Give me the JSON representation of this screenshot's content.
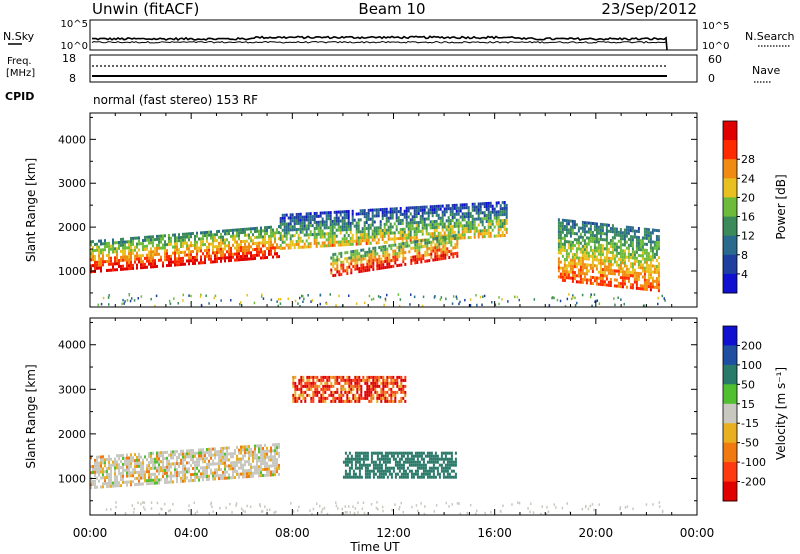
{
  "header": {
    "station": "Unwin (fitACF)",
    "beam": "Beam 10",
    "date": "23/Sep/2012"
  },
  "noise_panel": {
    "left_label": "N.Sky",
    "right_label": "N.Search",
    "left_ticks": [
      "10^5",
      "10^0"
    ],
    "right_ticks": [
      "10^5",
      "10^0"
    ]
  },
  "freq_panel": {
    "left_label_1": "Freq.",
    "left_label_2": "[MHz]",
    "right_label": "Nave",
    "left_ticks": [
      "18",
      "8"
    ],
    "right_ticks": [
      "60",
      "0"
    ]
  },
  "cpid": {
    "label": "CPID",
    "text": "normal (fast stereo) 153 RF"
  },
  "colors": {
    "power": [
      "#1010d0",
      "#1e3fa0",
      "#2a6a8c",
      "#3a8a5a",
      "#6dbb3a",
      "#e8c020",
      "#f08a10",
      "#ff2a00",
      "#e00000"
    ],
    "velocity": [
      "#1010d0",
      "#1e4fa0",
      "#2a7a6a",
      "#50c030",
      "#c8c8c0",
      "#e8b020",
      "#f07a10",
      "#ff3a10",
      "#e00000"
    ],
    "ground": "#c8c8c0"
  },
  "chart_data": [
    {
      "type": "heatmap",
      "title": "",
      "xlabel": "Time UT",
      "ylabel": "Slant Range [km]",
      "x_ticks": [
        "00:00",
        "04:00",
        "08:00",
        "12:00",
        "16:00",
        "20:00",
        "00:00"
      ],
      "y_ticks": [
        "1000",
        "2000",
        "3000",
        "4000"
      ],
      "xlim": [
        0,
        24
      ],
      "ylim": [
        180,
        4600
      ],
      "colorbar_label": "Power [dB]",
      "colorbar_ticks": [
        "4",
        "8",
        "12",
        "16",
        "20",
        "24",
        "28"
      ],
      "features": [
        {
          "t_start": 0,
          "t_end": 7.5,
          "range_start": 1000,
          "range_end": 1700,
          "value": 26
        },
        {
          "t_start": 7.5,
          "t_end": 16.5,
          "range_start": 1500,
          "range_end": 2300,
          "value": 14
        },
        {
          "t_start": 9.5,
          "t_end": 14.5,
          "range_start": 900,
          "range_end": 1400,
          "value": 22
        },
        {
          "t_start": 18.5,
          "t_end": 22.5,
          "range_start": 800,
          "range_end": 2200,
          "value": 20
        }
      ]
    },
    {
      "type": "heatmap",
      "title": "",
      "xlabel": "Time UT",
      "ylabel": "Slant Range [km]",
      "x_ticks": [
        "00:00",
        "04:00",
        "08:00",
        "12:00",
        "16:00",
        "20:00",
        "00:00"
      ],
      "y_ticks": [
        "1000",
        "2000",
        "3000",
        "4000"
      ],
      "xlim": [
        0,
        24
      ],
      "ylim": [
        180,
        4600
      ],
      "colorbar_label": "Velocity [m s⁻¹]",
      "colorbar_ticks": [
        "200",
        "100",
        "50",
        "15",
        "-15",
        "-50",
        "-100",
        "-200"
      ],
      "features": [
        {
          "t_start": 0,
          "t_end": 7.5,
          "range_start": 800,
          "range_end": 1500,
          "value": 0
        },
        {
          "t_start": 10,
          "t_end": 14.5,
          "range_start": 1000,
          "range_end": 1600,
          "value": 60
        },
        {
          "t_start": 8,
          "t_end": 12.5,
          "range_start": 2700,
          "range_end": 3300,
          "value": -150
        }
      ]
    }
  ]
}
